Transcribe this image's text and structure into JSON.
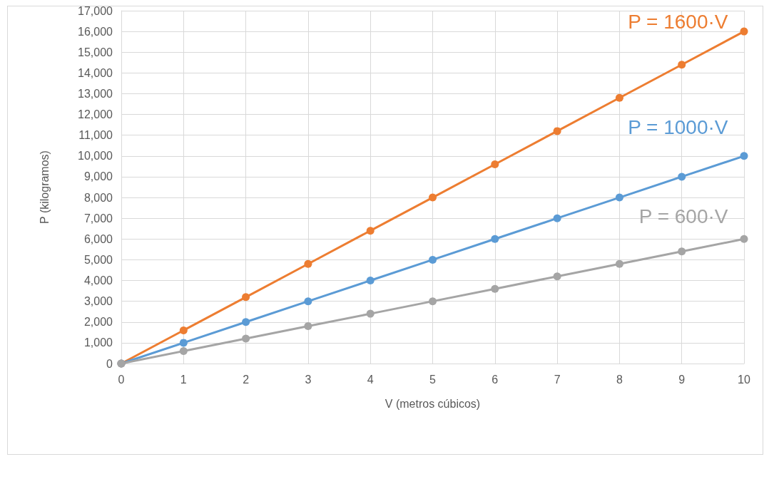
{
  "chart_data": {
    "type": "line",
    "xlabel": "V (metros cúbicos)",
    "ylabel": "P (kilogramos)",
    "x": [
      0,
      1,
      2,
      3,
      4,
      5,
      6,
      7,
      8,
      9,
      10
    ],
    "series": [
      {
        "name": "P = 1600·V",
        "color": "#ed7d31",
        "values": [
          0,
          1600,
          3200,
          4800,
          6400,
          8000,
          9600,
          11200,
          12800,
          14400,
          16000
        ]
      },
      {
        "name": "P = 1000·V",
        "color": "#5b9bd5",
        "values": [
          0,
          1000,
          2000,
          3000,
          4000,
          5000,
          6000,
          7000,
          8000,
          9000,
          10000
        ]
      },
      {
        "name": "P = 600·V",
        "color": "#a5a5a5",
        "values": [
          0,
          600,
          1200,
          1800,
          2400,
          3000,
          3600,
          4200,
          4800,
          5400,
          6000
        ]
      }
    ],
    "xlim": [
      0,
      10
    ],
    "xticks": [
      0,
      1,
      2,
      3,
      4,
      5,
      6,
      7,
      8,
      9,
      10
    ],
    "ylim": [
      0,
      17000
    ],
    "yticks": [
      0,
      {
        "value": 1000,
        "label": "1,000"
      },
      {
        "value": 2000,
        "label": "2,000"
      },
      {
        "value": 3000,
        "label": "3,000"
      },
      {
        "value": 4000,
        "label": "4,000"
      },
      {
        "value": 5000,
        "label": "5,000"
      },
      {
        "value": 6000,
        "label": "6,000"
      },
      {
        "value": 7000,
        "label": "7,000"
      },
      {
        "value": 8000,
        "label": "8,000"
      },
      {
        "value": 9000,
        "label": "9,000"
      },
      {
        "value": 10000,
        "label": "10,000"
      },
      {
        "value": 11000,
        "label": "11,000"
      },
      {
        "value": 12000,
        "label": "12,000"
      },
      {
        "value": 13000,
        "label": "13,000"
      },
      {
        "value": 14000,
        "label": "14,000"
      },
      {
        "value": 15000,
        "label": "15,000"
      },
      {
        "value": 16000,
        "label": "16,000"
      },
      {
        "value": 17000,
        "label": "17,000"
      }
    ],
    "grid": true,
    "marker": "circle",
    "line_style": "solid",
    "legend": false
  }
}
